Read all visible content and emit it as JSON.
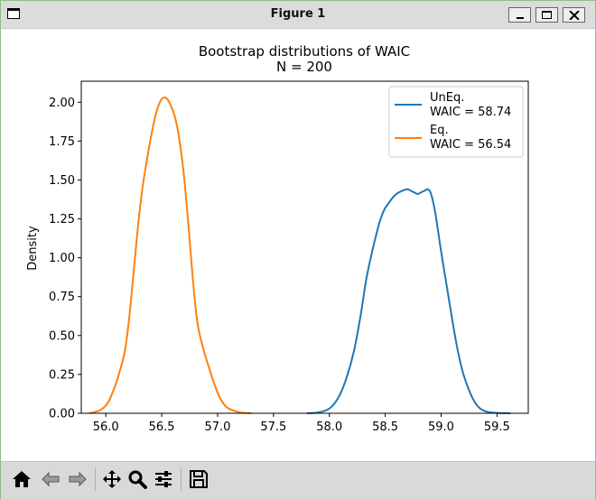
{
  "window": {
    "title": "Figure 1"
  },
  "toolbar": {
    "buttons": [
      "home-icon",
      "back-icon",
      "forward-icon",
      "pan-icon",
      "zoom-icon",
      "configure-icon",
      "save-icon"
    ]
  },
  "chart_data": {
    "type": "line",
    "title": "Bootstrap distributions of WAIC",
    "subtitle": "N = 200",
    "xlabel": "",
    "ylabel": "Density",
    "xlim": [
      55.78,
      59.78
    ],
    "ylim": [
      0,
      2.135
    ],
    "xticks": [
      "56.0",
      "56.5",
      "57.0",
      "57.5",
      "58.0",
      "58.5",
      "59.0",
      "59.5"
    ],
    "yticks": [
      "0.00",
      "0.25",
      "0.50",
      "0.75",
      "1.00",
      "1.25",
      "1.50",
      "1.75",
      "2.00"
    ],
    "grid": false,
    "legend_position": "top-right",
    "series": [
      {
        "name": "UnEq.",
        "label_line2": "WAIC = 58.74",
        "color": "#1f77b4",
        "x": [
          57.8,
          57.9,
          58.0,
          58.08,
          58.15,
          58.22,
          58.28,
          58.33,
          58.38,
          58.42,
          58.45,
          58.48,
          58.5,
          58.53,
          58.56,
          58.6,
          58.65,
          58.7,
          58.73,
          58.76,
          58.79,
          58.82,
          58.85,
          58.88,
          58.91,
          58.95,
          59.0,
          59.05,
          59.1,
          59.15,
          59.2,
          59.28,
          59.35,
          59.45,
          59.62
        ],
        "y": [
          0.0,
          0.005,
          0.03,
          0.1,
          0.22,
          0.4,
          0.63,
          0.86,
          1.03,
          1.15,
          1.23,
          1.29,
          1.32,
          1.35,
          1.38,
          1.41,
          1.43,
          1.44,
          1.43,
          1.42,
          1.41,
          1.42,
          1.43,
          1.44,
          1.41,
          1.28,
          1.04,
          0.82,
          0.6,
          0.4,
          0.25,
          0.1,
          0.03,
          0.005,
          0.0
        ]
      },
      {
        "name": "Eq.",
        "label_line2": "WAIC = 56.54",
        "color": "#ff7f0e",
        "x": [
          55.85,
          55.95,
          56.02,
          56.08,
          56.12,
          56.17,
          56.21,
          56.25,
          56.29,
          56.33,
          56.37,
          56.41,
          56.45,
          56.49,
          56.52,
          56.55,
          56.58,
          56.62,
          56.66,
          56.7,
          56.74,
          56.78,
          56.82,
          56.87,
          56.92,
          56.97,
          57.02,
          57.08,
          57.15,
          57.22,
          57.3
        ],
        "y": [
          0.0,
          0.02,
          0.07,
          0.17,
          0.26,
          0.4,
          0.62,
          0.92,
          1.22,
          1.46,
          1.64,
          1.8,
          1.93,
          2.01,
          2.03,
          2.02,
          1.98,
          1.9,
          1.75,
          1.52,
          1.2,
          0.85,
          0.58,
          0.42,
          0.3,
          0.19,
          0.1,
          0.04,
          0.015,
          0.004,
          0.0
        ]
      }
    ]
  }
}
